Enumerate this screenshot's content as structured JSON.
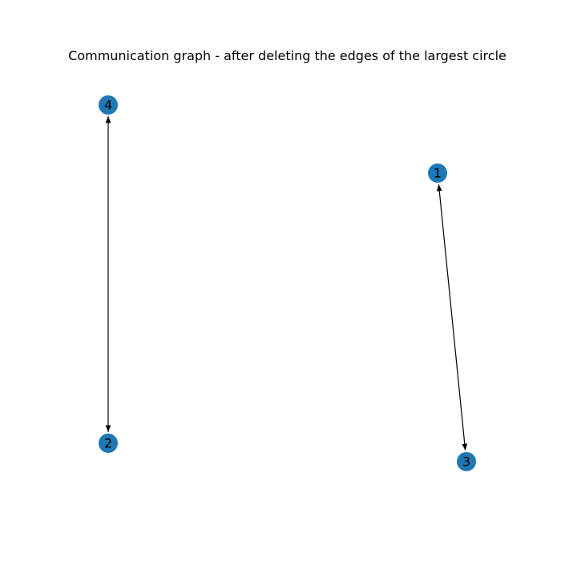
{
  "diagram": {
    "title": "Communication graph - after deleting the edges of the largest circle",
    "node_color": "#1f77b4",
    "edge_color": "#000000",
    "nodes": [
      {
        "id": "4",
        "label": "4"
      },
      {
        "id": "1",
        "label": "1"
      },
      {
        "id": "2",
        "label": "2"
      },
      {
        "id": "3",
        "label": "3"
      }
    ],
    "edges": [
      {
        "source": "4",
        "target": "2",
        "directed": "both"
      },
      {
        "source": "1",
        "target": "3",
        "directed": "both"
      }
    ]
  }
}
